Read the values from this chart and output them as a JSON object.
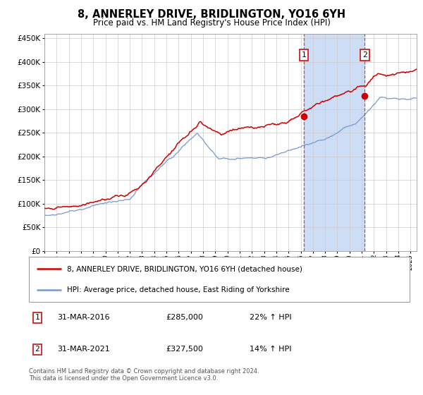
{
  "title": "8, ANNERLEY DRIVE, BRIDLINGTON, YO16 6YH",
  "subtitle": "Price paid vs. HM Land Registry's House Price Index (HPI)",
  "legend_line1": "8, ANNERLEY DRIVE, BRIDLINGTON, YO16 6YH (detached house)",
  "legend_line2": "HPI: Average price, detached house, East Riding of Yorkshire",
  "transaction1_date": "31-MAR-2016",
  "transaction1_price": 285000,
  "transaction1_hpi": "22% ↑ HPI",
  "transaction2_date": "31-MAR-2021",
  "transaction2_price": 327500,
  "transaction2_hpi": "14% ↑ HPI",
  "footer": "Contains HM Land Registry data © Crown copyright and database right 2024.\nThis data is licensed under the Open Government Licence v3.0.",
  "red_color": "#cc0000",
  "blue_color": "#7799cc",
  "bg_color": "#ffffff",
  "grid_color": "#cccccc",
  "shading_color": "#ccddf5",
  "ylim": [
    0,
    460000
  ],
  "yticks": [
    0,
    50000,
    100000,
    150000,
    200000,
    250000,
    300000,
    350000,
    400000,
    450000
  ],
  "transaction1_x": 2016.25,
  "transaction2_x": 2021.25,
  "xlim_left": 1995.0,
  "xlim_right": 2025.5
}
